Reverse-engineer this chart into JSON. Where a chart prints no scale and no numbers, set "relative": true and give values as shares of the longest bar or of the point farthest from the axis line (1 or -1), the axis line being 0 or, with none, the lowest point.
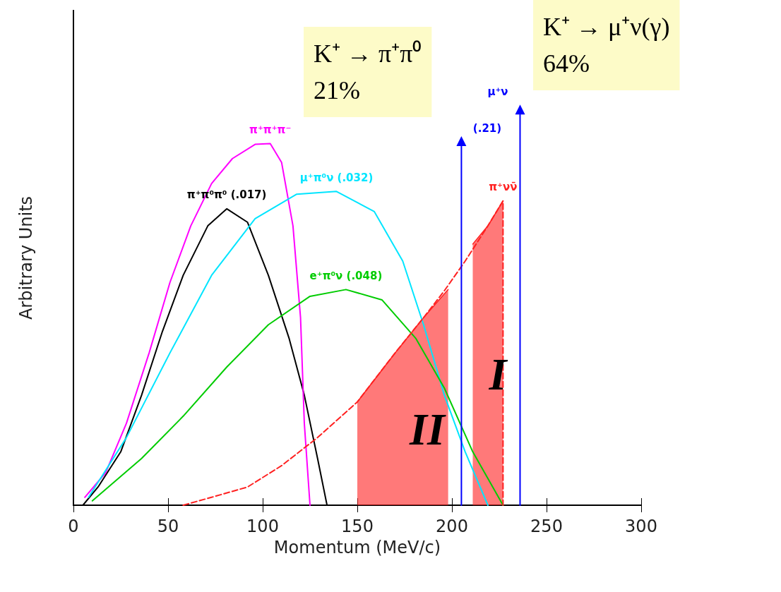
{
  "chart_data": {
    "type": "line",
    "relative": true,
    "xlabel": "Momentum (MeV/c)",
    "ylabel": "Arbitrary Units",
    "xlim": [
      0,
      300
    ],
    "xticks": [
      0,
      50,
      100,
      150,
      200,
      250,
      300
    ],
    "grid": false,
    "marker": "none",
    "line_style": "solid",
    "series": [
      {
        "name": "π⁺π⁰π⁰ (.017)",
        "color": "#000000",
        "x": [
          5,
          13,
          25,
          36,
          47,
          58,
          71,
          81,
          92,
          103,
          114,
          122,
          129,
          134
        ],
        "values": [
          0,
          0.046,
          0.135,
          0.278,
          0.439,
          0.581,
          0.706,
          0.749,
          0.715,
          0.581,
          0.421,
          0.278,
          0.118,
          0
        ]
      },
      {
        "name": "π⁺π⁺π⁻",
        "color": "#ff00ff",
        "x": [
          6,
          17,
          28,
          40,
          51,
          62,
          73,
          84,
          96,
          104,
          110,
          116,
          120,
          122,
          125
        ],
        "values": [
          0.02,
          0.082,
          0.207,
          0.385,
          0.563,
          0.706,
          0.813,
          0.876,
          0.912,
          0.914,
          0.866,
          0.706,
          0.474,
          0.207,
          0
        ]
      },
      {
        "name": "μ⁺π⁰ν (.032)",
        "color": "#00e5ff",
        "x": [
          8,
          28,
          51,
          73,
          96,
          118,
          139,
          159,
          174,
          185,
          196,
          207,
          219
        ],
        "values": [
          0.02,
          0.171,
          0.385,
          0.581,
          0.724,
          0.786,
          0.793,
          0.742,
          0.617,
          0.456,
          0.278,
          0.135,
          0
        ]
      },
      {
        "name": "e⁺π⁰ν (.048)",
        "color": "#00cc00",
        "x": [
          10,
          36,
          58,
          81,
          103,
          125,
          144,
          163,
          181,
          196,
          211,
          227
        ],
        "values": [
          0.011,
          0.118,
          0.225,
          0.349,
          0.456,
          0.528,
          0.545,
          0.519,
          0.421,
          0.296,
          0.135,
          0
        ]
      },
      {
        "name": "π⁺νν̄",
        "color": "#ff2020",
        "line_style": "dashed",
        "x": [
          58,
          73,
          92,
          110,
          129,
          150,
          170,
          185,
          196,
          207,
          219,
          227,
          227
        ],
        "values": [
          0,
          0.02,
          0.046,
          0.1,
          0.171,
          0.261,
          0.385,
          0.474,
          0.542,
          0.617,
          0.706,
          0.769,
          0
        ]
      },
      {
        "type": "area",
        "color": "#ff2020",
        "x": [
          150,
          170,
          185,
          198
        ],
        "values": [
          0.261,
          0.385,
          0.474,
          0.545
        ]
      },
      {
        "type": "area",
        "color": "#ff2020",
        "x": [
          211,
          219,
          227
        ],
        "values": [
          0.66,
          0.706,
          0.769
        ]
      },
      {
        "color": "#0000ff",
        "marker": "triangle",
        "x": [
          205,
          205
        ],
        "values": [
          0,
          0.92
        ]
      },
      {
        "color": "#0000ff",
        "marker": "triangle",
        "x": [
          236,
          236
        ],
        "values": [
          0,
          1
        ]
      }
    ],
    "annotations": [
      "K⁺ → π⁺π⁰\n21%",
      "K⁺ → μ⁺ν(γ)\n64%",
      "μ⁺ν",
      "(.21)",
      "II",
      "I"
    ]
  }
}
